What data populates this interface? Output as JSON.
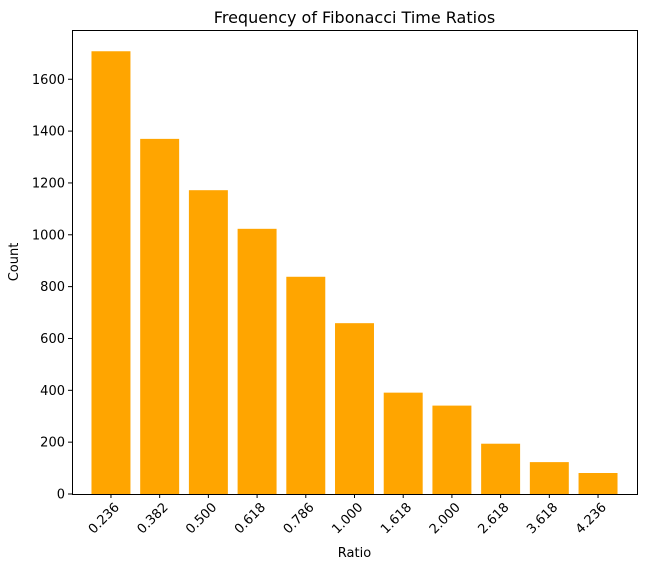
{
  "chart_data": {
    "type": "bar",
    "title": "Frequency of Fibonacci Time Ratios",
    "xlabel": "Ratio",
    "ylabel": "Count",
    "categories": [
      "0.236",
      "0.382",
      "0.500",
      "0.618",
      "0.786",
      "1.000",
      "1.618",
      "2.000",
      "2.618",
      "3.618",
      "4.236"
    ],
    "values": [
      1708,
      1370,
      1172,
      1023,
      838,
      659,
      391,
      341,
      194,
      123,
      81
    ],
    "ylim": [
      0,
      1790
    ],
    "yticks": [
      0,
      200,
      400,
      600,
      800,
      1000,
      1200,
      1400,
      1600
    ],
    "bar_color": "#ffa500",
    "grid": false,
    "legend": "none"
  }
}
